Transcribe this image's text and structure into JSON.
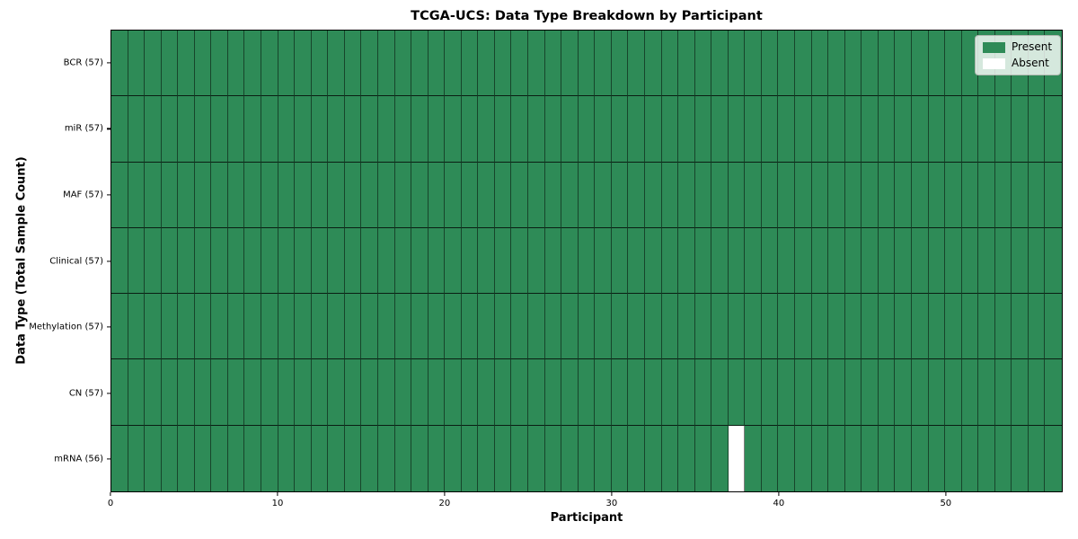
{
  "title": "TCGA-UCS: Data Type Breakdown by Participant",
  "axes": {
    "xlabel": "Participant",
    "ylabel": "Data Type (Total Sample Count)"
  },
  "legend": {
    "items": [
      {
        "name": "present",
        "label": "Present",
        "color": "#2E8B57"
      },
      {
        "name": "absent",
        "label": "Absent",
        "color": "#FFFFFF"
      }
    ]
  },
  "chart_data": {
    "type": "heatmap",
    "title": "TCGA-UCS: Data Type Breakdown by Participant",
    "xlabel": "Participant",
    "ylabel": "Data Type (Total Sample Count)",
    "n_participants": 57,
    "x_ticks": [
      0,
      10,
      20,
      30,
      40,
      50
    ],
    "x_range": [
      0,
      57
    ],
    "legend_position": "upper right",
    "grid": true,
    "rows": [
      {
        "name": "BCR",
        "label": "BCR (57)",
        "present_count": 57,
        "absent_participants": []
      },
      {
        "name": "miR",
        "label": "miR (57)",
        "present_count": 57,
        "absent_participants": []
      },
      {
        "name": "MAF",
        "label": "MAF (57)",
        "present_count": 57,
        "absent_participants": []
      },
      {
        "name": "Clinical",
        "label": "Clinical (57)",
        "present_count": 57,
        "absent_participants": []
      },
      {
        "name": "Methylation",
        "label": "Methylation (57)",
        "present_count": 57,
        "absent_participants": []
      },
      {
        "name": "CN",
        "label": "CN (57)",
        "present_count": 57,
        "absent_participants": []
      },
      {
        "name": "mRNA",
        "label": "mRNA (56)",
        "present_count": 56,
        "absent_participants": [
          37
        ]
      }
    ],
    "colors": {
      "present": "#2E8B57",
      "absent": "#FFFFFF",
      "cell_edge": "rgba(0,0,0,0.5)",
      "row_edge": "rgba(0,0,0,0.78)",
      "spine": "#000000",
      "background": "#FFFFFF"
    }
  }
}
